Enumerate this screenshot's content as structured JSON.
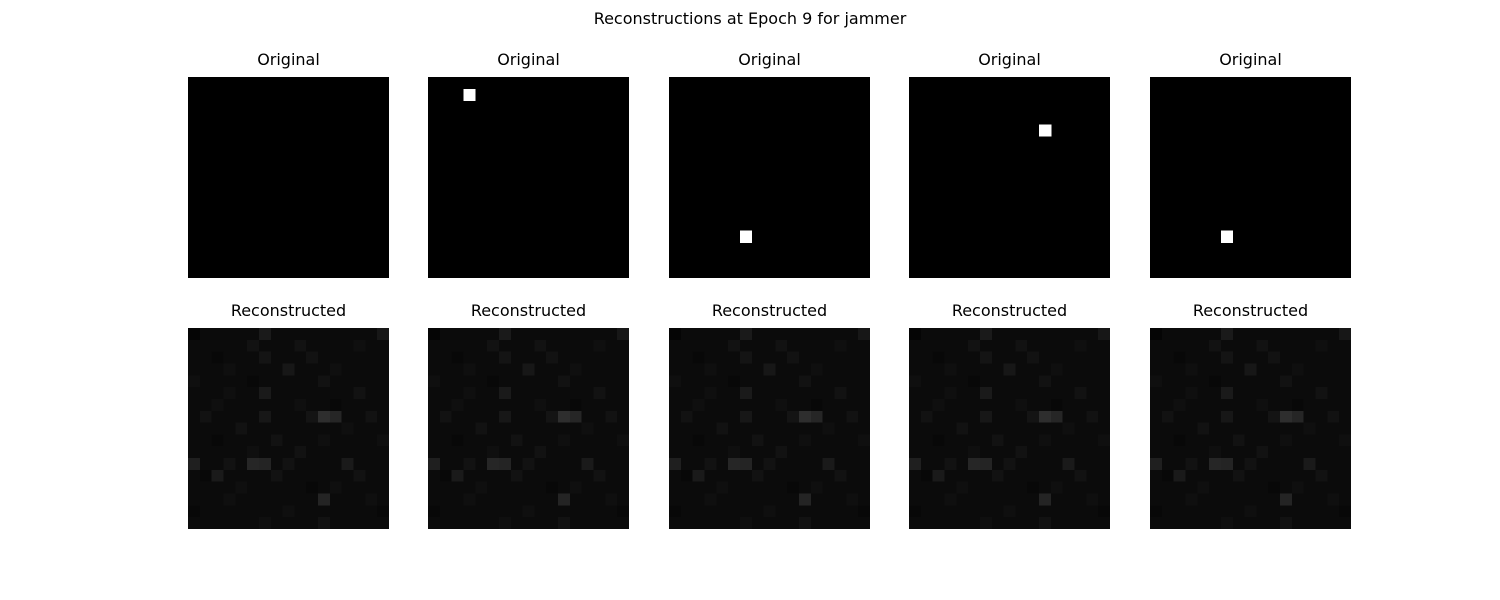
{
  "chart_data": {
    "type": "heatmap",
    "title": "Reconstructions at Epoch 9 for jammer",
    "grid_size": 17,
    "colormap": "gray",
    "value_range": [
      0,
      1
    ],
    "rows": [
      {
        "label": "Original",
        "images": [
          {
            "active_pixels": []
          },
          {
            "active_pixels": [
              [
                1,
                3
              ]
            ]
          },
          {
            "active_pixels": [
              [
                13,
                6
              ]
            ]
          },
          {
            "active_pixels": [
              [
                4,
                11
              ]
            ]
          },
          {
            "active_pixels": [
              [
                13,
                6
              ]
            ]
          }
        ]
      },
      {
        "label": "Reconstructed",
        "base_value": 0.045,
        "brighter_pixels": [
          [
            0,
            0,
            0.02
          ],
          [
            0,
            6,
            0.1
          ],
          [
            0,
            16,
            0.09
          ],
          [
            1,
            5,
            0.07
          ],
          [
            1,
            9,
            0.07
          ],
          [
            1,
            14,
            0.06
          ],
          [
            2,
            2,
            0.03
          ],
          [
            2,
            6,
            0.08
          ],
          [
            2,
            10,
            0.07
          ],
          [
            3,
            3,
            0.06
          ],
          [
            3,
            8,
            0.09
          ],
          [
            3,
            12,
            0.06
          ],
          [
            4,
            0,
            0.06
          ],
          [
            4,
            5,
            0.03
          ],
          [
            4,
            11,
            0.07
          ],
          [
            5,
            3,
            0.06
          ],
          [
            5,
            6,
            0.1
          ],
          [
            5,
            14,
            0.07
          ],
          [
            6,
            2,
            0.06
          ],
          [
            6,
            9,
            0.06
          ],
          [
            6,
            12,
            0.03
          ],
          [
            7,
            1,
            0.07
          ],
          [
            7,
            6,
            0.09
          ],
          [
            7,
            10,
            0.08
          ],
          [
            7,
            11,
            0.18
          ],
          [
            7,
            12,
            0.15
          ],
          [
            7,
            15,
            0.07
          ],
          [
            8,
            4,
            0.07
          ],
          [
            8,
            13,
            0.06
          ],
          [
            9,
            2,
            0.03
          ],
          [
            9,
            7,
            0.07
          ],
          [
            9,
            11,
            0.06
          ],
          [
            9,
            16,
            0.06
          ],
          [
            10,
            5,
            0.06
          ],
          [
            10,
            9,
            0.07
          ],
          [
            11,
            0,
            0.12
          ],
          [
            11,
            3,
            0.07
          ],
          [
            11,
            5,
            0.15
          ],
          [
            11,
            6,
            0.14
          ],
          [
            11,
            8,
            0.07
          ],
          [
            11,
            13,
            0.1
          ],
          [
            12,
            1,
            0.03
          ],
          [
            12,
            2,
            0.1
          ],
          [
            12,
            7,
            0.07
          ],
          [
            12,
            14,
            0.07
          ],
          [
            13,
            4,
            0.06
          ],
          [
            13,
            10,
            0.03
          ],
          [
            13,
            12,
            0.06
          ],
          [
            14,
            3,
            0.06
          ],
          [
            14,
            11,
            0.14
          ],
          [
            14,
            15,
            0.06
          ],
          [
            15,
            0,
            0.03
          ],
          [
            15,
            8,
            0.06
          ],
          [
            15,
            16,
            0.03
          ],
          [
            16,
            6,
            0.06
          ],
          [
            16,
            11,
            0.07
          ]
        ],
        "images_count": 5
      }
    ]
  }
}
